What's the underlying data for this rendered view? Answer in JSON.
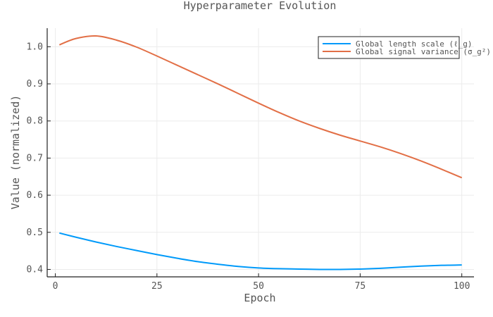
{
  "chart_data": {
    "type": "line",
    "title": "Hyperparameter Evolution",
    "xlabel": "Epoch",
    "ylabel": "Value (normalized)",
    "xlim": [
      -2,
      103
    ],
    "ylim": [
      0.38,
      1.05
    ],
    "xticks": [
      0,
      25,
      50,
      75,
      100
    ],
    "yticks": [
      0.4,
      0.5,
      0.6,
      0.7,
      0.8,
      0.9,
      1.0
    ],
    "grid": true,
    "legend_position": "top-right",
    "x": [
      1,
      5,
      10,
      15,
      20,
      25,
      30,
      35,
      40,
      45,
      50,
      55,
      60,
      65,
      70,
      75,
      80,
      85,
      90,
      95,
      100
    ],
    "series": [
      {
        "name": "Global length scale (ℓ_g)",
        "color": "#009AFA",
        "values": [
          0.498,
          0.487,
          0.474,
          0.462,
          0.451,
          0.44,
          0.43,
          0.421,
          0.414,
          0.408,
          0.404,
          0.402,
          0.401,
          0.4,
          0.4,
          0.401,
          0.403,
          0.406,
          0.409,
          0.411,
          0.412
        ]
      },
      {
        "name": "Global signal variance (σ_g²)",
        "color": "#E26F46",
        "values": [
          1.005,
          1.022,
          1.029,
          1.018,
          0.999,
          0.975,
          0.95,
          0.925,
          0.9,
          0.874,
          0.848,
          0.823,
          0.8,
          0.78,
          0.762,
          0.746,
          0.73,
          0.712,
          0.692,
          0.67,
          0.647
        ]
      }
    ]
  }
}
